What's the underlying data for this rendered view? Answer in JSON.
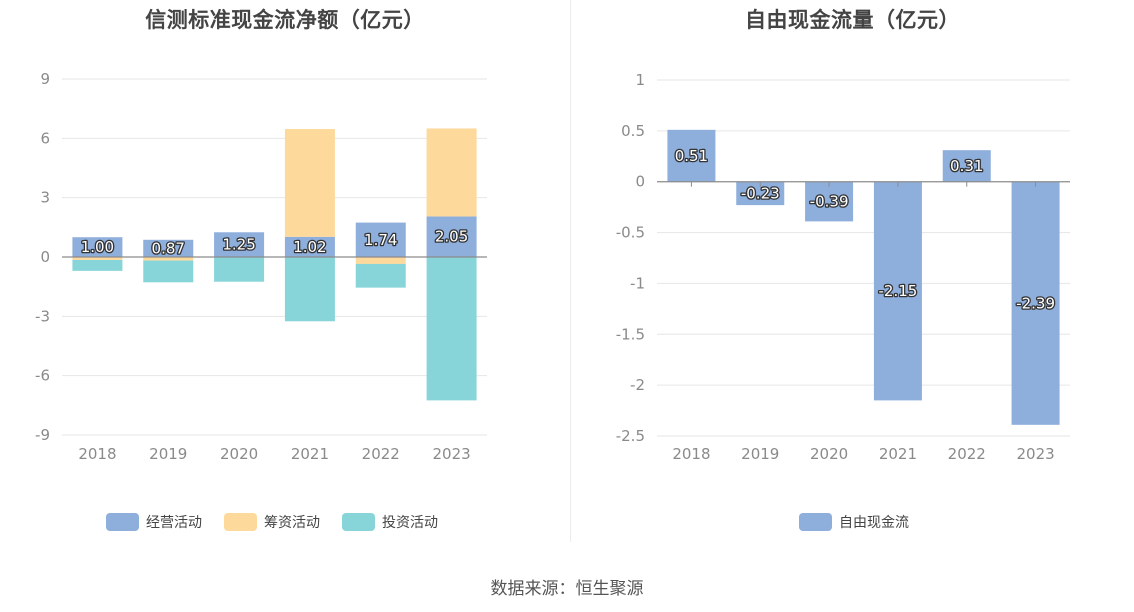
{
  "source_text": "数据来源：恒生聚源",
  "colors": {
    "operating": "#8eaedc",
    "financing": "#fdd99b",
    "investing": "#87d5d8",
    "fcf": "#8eaedc",
    "grid": "#e6e6e6",
    "zero_line": "#8c8c8c"
  },
  "chart_data": [
    {
      "type": "bar",
      "stacked": true,
      "title": "信测标准现金流净额（亿元）",
      "categories": [
        "2018",
        "2019",
        "2020",
        "2021",
        "2022",
        "2023"
      ],
      "ylim": [
        -9,
        9
      ],
      "yticks": [
        9,
        6,
        3,
        0,
        -3,
        -6,
        -9
      ],
      "series": [
        {
          "name": "经营活动",
          "values": [
            1.0,
            0.87,
            1.25,
            1.02,
            1.74,
            2.05
          ],
          "labels": [
            "1.00",
            "0.87",
            "1.25",
            "1.02",
            "1.74",
            "2.05"
          ]
        },
        {
          "name": "筹资活动",
          "values": [
            -0.15,
            -0.18,
            0.0,
            5.45,
            -0.35,
            4.45
          ]
        },
        {
          "name": "投资活动",
          "values": [
            -0.55,
            -1.1,
            -1.25,
            -3.25,
            -1.2,
            -7.25
          ]
        }
      ],
      "legend": "bottom"
    },
    {
      "type": "bar",
      "title": "自由现金流量（亿元）",
      "categories": [
        "2018",
        "2019",
        "2020",
        "2021",
        "2022",
        "2023"
      ],
      "ylim": [
        -2.5,
        1
      ],
      "yticks": [
        "1",
        "0.5",
        "0",
        "-0.5",
        "-1",
        "-1.5",
        "-2",
        "-2.5"
      ],
      "series": [
        {
          "name": "自由现金流",
          "values": [
            0.51,
            -0.23,
            -0.39,
            -2.15,
            0.31,
            -2.39
          ],
          "labels": [
            "0.51",
            "-0.23",
            "-0.39",
            "-2.15",
            "0.31",
            "-2.39"
          ]
        }
      ],
      "legend": "bottom"
    }
  ]
}
